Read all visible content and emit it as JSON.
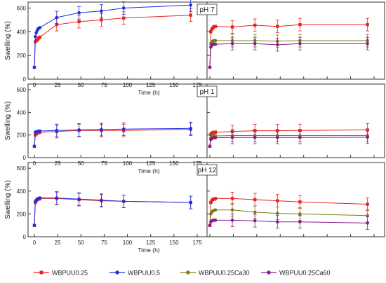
{
  "figure": {
    "ylabel": "Swelling (%)",
    "xlabel": "Time (h)",
    "y_ticks": [
      "0",
      "200",
      "400",
      "600"
    ],
    "x_ticks": [
      "0",
      "25",
      "50",
      "75",
      "100",
      "125",
      "150",
      "175"
    ],
    "rows": [
      {
        "label": "pH 7"
      },
      {
        "label": "pH 1"
      },
      {
        "label": "pH 12"
      }
    ],
    "legend": [
      {
        "key": "a",
        "name": "WBPUU0.25",
        "color": "#e8231f",
        "marker": "square"
      },
      {
        "key": "b",
        "name": "WBPUU0.5",
        "color": "#1f2fe0",
        "marker": "circle"
      },
      {
        "key": "c",
        "name": "WBPUU0.25Ca30",
        "color": "#7a7d14",
        "marker": "circle"
      },
      {
        "key": "d",
        "name": "WBPUU0.25Ca60",
        "color": "#8a1c8c",
        "marker": "circle"
      }
    ]
  },
  "chart_data": [
    {
      "type": "line",
      "panel": "pH 7 (left)",
      "x": [
        0,
        1,
        2,
        3,
        4,
        5,
        6,
        24,
        48,
        72,
        96,
        168
      ],
      "xlabel": "Time (h)",
      "ylabel": "Swelling (%)",
      "xlim": [
        -3,
        175
      ],
      "ylim": [
        0,
        650
      ],
      "series": [
        {
          "name": "WBPUU0.25",
          "color": "#e8231f",
          "values": [
            100,
            315,
            325,
            330,
            340,
            350,
            355,
            460,
            485,
            500,
            515,
            540
          ]
        },
        {
          "name": "WBPUU0.5",
          "color": "#1f2fe0",
          "values": [
            100,
            360,
            390,
            410,
            425,
            430,
            435,
            520,
            560,
            575,
            600,
            625
          ]
        }
      ]
    },
    {
      "type": "line",
      "panel": "pH 7 (right)",
      "x": [
        0,
        1,
        2,
        3,
        4,
        5,
        6,
        24,
        48,
        72,
        96,
        168
      ],
      "xlim": [
        -3,
        175
      ],
      "ylim": [
        0,
        650
      ],
      "series": [
        {
          "name": "WBPUU0.25",
          "color": "#e8231f",
          "values": [
            100,
            400,
            420,
            430,
            440,
            445,
            445,
            440,
            455,
            445,
            460,
            460
          ]
        },
        {
          "name": "WBPUU0.25Ca30",
          "color": "#7a7d14",
          "values": [
            100,
            300,
            315,
            320,
            325,
            325,
            325,
            325,
            325,
            320,
            325,
            325
          ]
        },
        {
          "name": "WBPUU0.25Ca60",
          "color": "#8a1c8c",
          "values": [
            100,
            270,
            285,
            290,
            295,
            295,
            295,
            300,
            300,
            290,
            300,
            300
          ]
        }
      ]
    },
    {
      "type": "line",
      "panel": "pH 1 (left)",
      "x": [
        0,
        1,
        2,
        3,
        4,
        5,
        6,
        24,
        48,
        72,
        96,
        168
      ],
      "xlabel": "Time (h)",
      "ylabel": "Swelling (%)",
      "xlim": [
        -3,
        175
      ],
      "ylim": [
        0,
        650
      ],
      "series": [
        {
          "name": "WBPUU0.25",
          "color": "#e8231f",
          "values": [
            100,
            200,
            210,
            215,
            220,
            222,
            225,
            230,
            240,
            240,
            240,
            250
          ]
        },
        {
          "name": "WBPUU0.5",
          "color": "#1f2fe0",
          "values": [
            100,
            225,
            228,
            230,
            232,
            234,
            235,
            240,
            245,
            248,
            252,
            258
          ]
        }
      ]
    },
    {
      "type": "line",
      "panel": "pH 1 (right)",
      "x": [
        0,
        1,
        2,
        3,
        4,
        5,
        6,
        24,
        48,
        72,
        96,
        168
      ],
      "xlim": [
        -3,
        175
      ],
      "ylim": [
        0,
        650
      ],
      "series": [
        {
          "name": "WBPUU0.25",
          "color": "#e8231f",
          "values": [
            100,
            205,
            215,
            220,
            222,
            225,
            225,
            230,
            238,
            238,
            240,
            245
          ]
        },
        {
          "name": "WBPUU0.25Ca30",
          "color": "#7a7d14",
          "values": [
            100,
            175,
            185,
            188,
            190,
            192,
            192,
            195,
            195,
            195,
            195,
            195
          ]
        },
        {
          "name": "WBPUU0.25Ca60",
          "color": "#8a1c8c",
          "values": [
            100,
            160,
            168,
            172,
            175,
            176,
            176,
            178,
            178,
            178,
            178,
            180
          ]
        }
      ]
    },
    {
      "type": "line",
      "panel": "pH 12 (left)",
      "x": [
        0,
        1,
        2,
        3,
        4,
        5,
        6,
        24,
        48,
        72,
        96,
        168
      ],
      "xlabel": "Time (h)",
      "ylabel": "Swelling (%)",
      "xlim": [
        -3,
        175
      ],
      "ylim": [
        0,
        650
      ],
      "series": [
        {
          "name": "WBPUU0.25",
          "color": "#e8231f",
          "values": [
            100,
            300,
            315,
            325,
            330,
            330,
            335,
            335,
            325,
            315,
            310,
            300
          ]
        },
        {
          "name": "WBPUU0.5",
          "color": "#1f2fe0",
          "values": [
            100,
            310,
            320,
            330,
            335,
            338,
            340,
            340,
            330,
            320,
            310,
            300
          ]
        }
      ]
    },
    {
      "type": "line",
      "panel": "pH 12 (right)",
      "x": [
        0,
        1,
        2,
        3,
        4,
        5,
        6,
        24,
        48,
        72,
        96,
        168
      ],
      "xlim": [
        -3,
        175
      ],
      "ylim": [
        0,
        650
      ],
      "series": [
        {
          "name": "WBPUU0.25",
          "color": "#e8231f",
          "values": [
            100,
            300,
            315,
            325,
            330,
            330,
            335,
            335,
            325,
            315,
            305,
            285
          ]
        },
        {
          "name": "WBPUU0.25Ca30",
          "color": "#7a7d14",
          "values": [
            100,
            200,
            215,
            225,
            230,
            232,
            235,
            235,
            215,
            205,
            200,
            185
          ]
        },
        {
          "name": "WBPUU0.25Ca60",
          "color": "#8a1c8c",
          "values": [
            100,
            130,
            138,
            142,
            145,
            145,
            145,
            145,
            140,
            130,
            130,
            120
          ]
        }
      ]
    }
  ]
}
